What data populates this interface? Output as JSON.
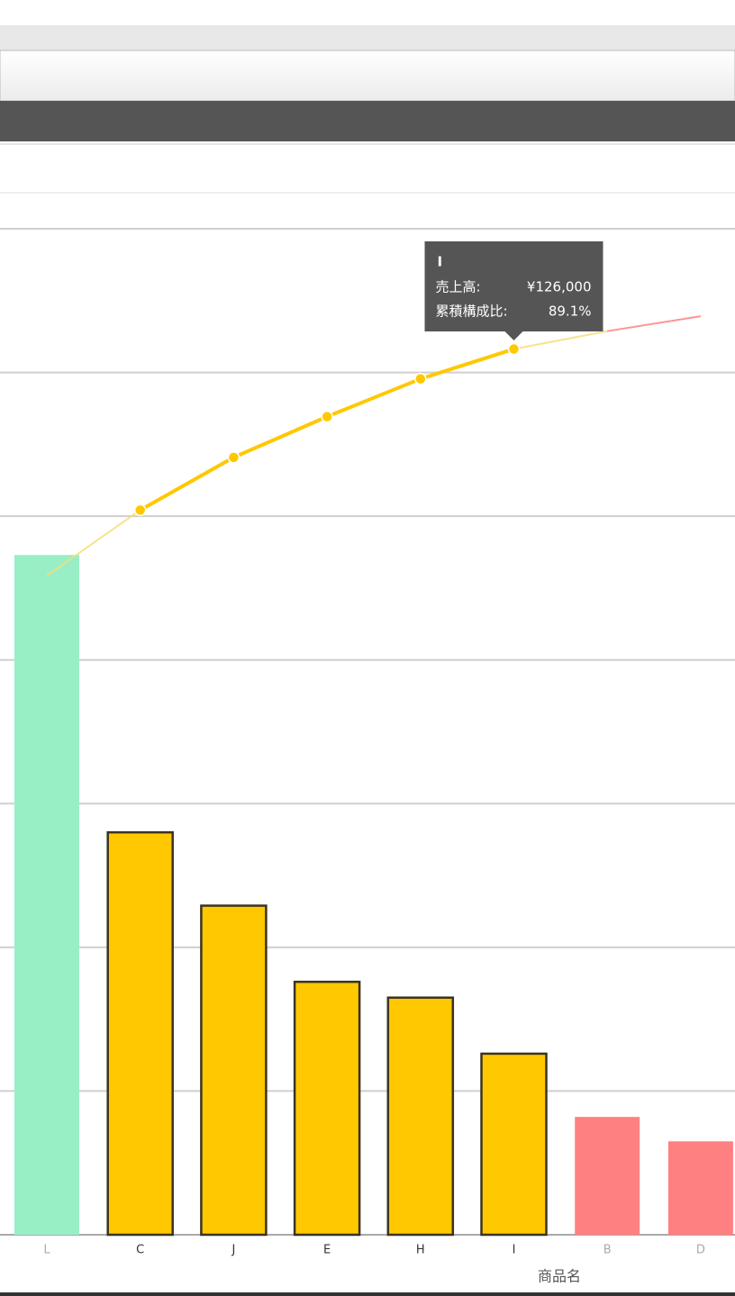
{
  "chart_data": {
    "type": "pareto",
    "x_label": "商品名",
    "categories": [
      "L",
      "C",
      "J",
      "E",
      "H",
      "I",
      "B",
      "D"
    ],
    "values": [
      473000,
      280000,
      229000,
      176000,
      165000,
      126000,
      82000,
      65000
    ],
    "colors": [
      "#98efc6",
      "#ffc800",
      "#ffc800",
      "#ffc800",
      "#ffc800",
      "#ffc800",
      "#ff8080",
      "#ff8080"
    ],
    "line_values": [
      66.3,
      72.9,
      78.2,
      82.3,
      86.1,
      89.1,
      90.9,
      92.4
    ],
    "highlighted_categories": [
      "C",
      "J",
      "E",
      "H",
      "I"
    ],
    "ylim": [
      0,
      700000
    ],
    "yticks": [
      0,
      100000,
      200000,
      300000,
      400000,
      500000,
      600000,
      700000
    ],
    "y2lim": [
      0,
      101.2
    ],
    "grid": true,
    "tooltip": {
      "title": "I",
      "rows": [
        [
          "売上高:",
          "¥126,000"
        ],
        [
          "累積構成比:",
          "89.1%"
        ]
      ]
    }
  }
}
